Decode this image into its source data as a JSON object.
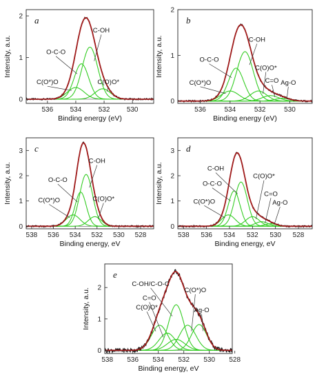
{
  "chart_data": [
    {
      "id": "a",
      "type": "line",
      "panel_label": "a",
      "xlabel": "Binding energy (eV)",
      "ylabel": "Intensity, a.u.",
      "xlim": [
        537.5,
        528.5
      ],
      "ylim": [
        -0.1,
        2.15
      ],
      "xticks": [
        536,
        534,
        532,
        530
      ],
      "yticks": [
        0,
        1,
        2
      ],
      "series": [
        {
          "name": "C-OH",
          "center": 533.0,
          "height": 1.25,
          "fwhm": 1.3
        },
        {
          "name": "O-C-O",
          "center": 533.6,
          "height": 0.85,
          "fwhm": 1.2
        },
        {
          "name": "C(O*)O",
          "center": 534.0,
          "height": 0.28,
          "fwhm": 1.4
        },
        {
          "name": "C(O)O*",
          "center": 532.1,
          "height": 0.25,
          "fwhm": 1.3
        }
      ],
      "annotations": [
        {
          "text": "C-OH",
          "component": "C-OH",
          "label_at": [
            532.2,
            1.6
          ]
        },
        {
          "text": "O-C-O",
          "component": "O-C-O",
          "label_at": [
            535.4,
            1.08
          ]
        },
        {
          "text": "C(O*)O",
          "component": "C(O*)O",
          "label_at": [
            536.0,
            0.36
          ]
        },
        {
          "text": "C(O)O*",
          "component": "C(O)O*",
          "label_at": [
            531.7,
            0.36
          ]
        }
      ]
    },
    {
      "id": "b",
      "type": "line",
      "panel_label": "b",
      "xlabel": "Binding energy (eV)",
      "ylabel": "Intensity, a.u.",
      "xlim": [
        537.5,
        528.5
      ],
      "ylim": [
        -0.05,
        2.0
      ],
      "xticks": [
        536,
        534,
        532,
        530
      ],
      "yticks": [
        0,
        1,
        2
      ],
      "series": [
        {
          "name": "C-OH",
          "center": 533.0,
          "height": 1.08,
          "fwhm": 1.3
        },
        {
          "name": "O-C-O",
          "center": 533.6,
          "height": 0.72,
          "fwhm": 1.2
        },
        {
          "name": "C(O*)O",
          "center": 534.0,
          "height": 0.22,
          "fwhm": 1.4
        },
        {
          "name": "C(O)O*",
          "center": 532.1,
          "height": 0.22,
          "fwhm": 1.3
        },
        {
          "name": "C=O",
          "center": 531.3,
          "height": 0.12,
          "fwhm": 1.3
        },
        {
          "name": "Ag-O",
          "center": 530.5,
          "height": 0.06,
          "fwhm": 1.2
        }
      ],
      "annotations": [
        {
          "text": "C-OH",
          "component": "C-OH",
          "label_at": [
            532.2,
            1.3
          ]
        },
        {
          "text": "O-C-O",
          "component": "O-C-O",
          "label_at": [
            535.4,
            0.86
          ]
        },
        {
          "text": "C(O*)O",
          "component": "C(O*)O",
          "label_at": [
            536.0,
            0.36
          ]
        },
        {
          "text": "C(O)O*",
          "component": "C(O)O*",
          "label_at": [
            531.6,
            0.68
          ]
        },
        {
          "text": "C=O",
          "component": "C=O",
          "label_at": [
            531.2,
            0.4
          ]
        },
        {
          "text": "Ag-O",
          "component": "Ag-O",
          "label_at": [
            530.1,
            0.36
          ]
        }
      ]
    },
    {
      "id": "c",
      "type": "line",
      "panel_label": "c",
      "xlabel": "Binding energy, eV",
      "ylabel": "Intensity, a.u.",
      "xlim": [
        538.5,
        526.8
      ],
      "ylim": [
        -0.1,
        3.5
      ],
      "xticks": [
        538,
        536,
        534,
        532,
        530,
        528
      ],
      "yticks": [
        0,
        1,
        2,
        3
      ],
      "series": [
        {
          "name": "C-OH",
          "center": 533.0,
          "height": 2.05,
          "fwhm": 1.4
        },
        {
          "name": "O-C-O",
          "center": 533.5,
          "height": 1.35,
          "fwhm": 1.2
        },
        {
          "name": "C(O*)O",
          "center": 534.2,
          "height": 0.45,
          "fwhm": 1.5
        },
        {
          "name": "C(O)O*",
          "center": 532.2,
          "height": 0.38,
          "fwhm": 1.4
        }
      ],
      "annotations": [
        {
          "text": "C-OH",
          "component": "C-OH",
          "label_at": [
            532.0,
            2.5
          ]
        },
        {
          "text": "O-C-O",
          "component": "O-C-O",
          "label_at": [
            535.6,
            1.75
          ]
        },
        {
          "text": "C(O*)O",
          "component": "C(O*)O",
          "label_at": [
            536.4,
            0.95
          ]
        },
        {
          "text": "C(O)O*",
          "component": "C(O)O*",
          "label_at": [
            531.4,
            1.0
          ]
        }
      ]
    },
    {
      "id": "d",
      "type": "line",
      "panel_label": "d",
      "xlabel": "Binding energy, eV",
      "ylabel": "Intensity, a.u.",
      "xlim": [
        538.5,
        526.8
      ],
      "ylim": [
        -0.1,
        3.5
      ],
      "xticks": [
        538,
        536,
        534,
        532,
        530,
        528
      ],
      "yticks": [
        0,
        1,
        2,
        3
      ],
      "series": [
        {
          "name": "C-OH",
          "center": 533.0,
          "height": 1.75,
          "fwhm": 1.3
        },
        {
          "name": "O-C-O",
          "center": 533.6,
          "height": 1.4,
          "fwhm": 1.2
        },
        {
          "name": "C(O*)O",
          "center": 534.1,
          "height": 0.45,
          "fwhm": 1.4
        },
        {
          "name": "C(O)O*",
          "center": 532.0,
          "height": 0.38,
          "fwhm": 1.4
        },
        {
          "name": "C=O",
          "center": 531.2,
          "height": 0.18,
          "fwhm": 1.3
        },
        {
          "name": "Ag-O",
          "center": 530.4,
          "height": 0.1,
          "fwhm": 1.2
        }
      ],
      "annotations": [
        {
          "text": "C-OH",
          "component": "C-OH",
          "label_at": [
            535.2,
            2.2
          ]
        },
        {
          "text": "O-C-O",
          "component": "O-C-O",
          "label_at": [
            535.5,
            1.6
          ]
        },
        {
          "text": "C(O*)O",
          "component": "C(O*)O",
          "label_at": [
            536.2,
            0.9
          ]
        },
        {
          "text": "C(O)O*",
          "component": "C(O)O*",
          "label_at": [
            531.0,
            1.9
          ]
        },
        {
          "text": "C=O",
          "component": "C=O",
          "label_at": [
            530.4,
            1.2
          ]
        },
        {
          "text": "Ag-O",
          "component": "Ag-O",
          "label_at": [
            529.6,
            0.85
          ]
        }
      ]
    },
    {
      "id": "e",
      "type": "line",
      "panel_label": "e",
      "xlabel": "Binding energy, eV",
      "ylabel": "Intensity, a.u.",
      "xlim": [
        538.2,
        528.2
      ],
      "ylim": [
        -0.1,
        2.75
      ],
      "xticks": [
        538,
        536,
        534,
        532,
        530,
        528
      ],
      "yticks": [
        0,
        1,
        2
      ],
      "series": [
        {
          "name": "C-OH/C-O-C",
          "center": 532.6,
          "height": 1.45,
          "fwhm": 1.4
        },
        {
          "name": "C(O)O*",
          "center": 533.9,
          "height": 0.8,
          "fwhm": 1.5
        },
        {
          "name": "C=O",
          "center": 533.3,
          "height": 0.55,
          "fwhm": 1.5
        },
        {
          "name": "C(O*)O",
          "center": 531.7,
          "height": 0.8,
          "fwhm": 1.5
        },
        {
          "name": "Ag-O",
          "center": 530.8,
          "height": 0.82,
          "fwhm": 1.4
        },
        {
          "name": "",
          "center": 532.6,
          "height": 0.35,
          "fwhm": 1.6
        }
      ],
      "annotations": [
        {
          "text": "C-OH/C-O-C",
          "component": "C-OH/C-O-C",
          "label_at": [
            534.6,
            2.05
          ]
        },
        {
          "text": "C=O",
          "component": "C=O",
          "label_at": [
            534.7,
            1.6
          ]
        },
        {
          "text": "C(O)O*",
          "component": "C(O)O*",
          "label_at": [
            534.9,
            1.3
          ]
        },
        {
          "text": "C(O*)O",
          "component": "C(O*)O",
          "label_at": [
            531.1,
            1.85
          ]
        },
        {
          "text": "Ag-O",
          "component": "Ag-O",
          "label_at": [
            530.6,
            1.22
          ]
        }
      ]
    }
  ],
  "colors": {
    "envelope": "#a01a1a",
    "experimental": "#111111",
    "component": "#33cc22",
    "axis": "#222222"
  }
}
